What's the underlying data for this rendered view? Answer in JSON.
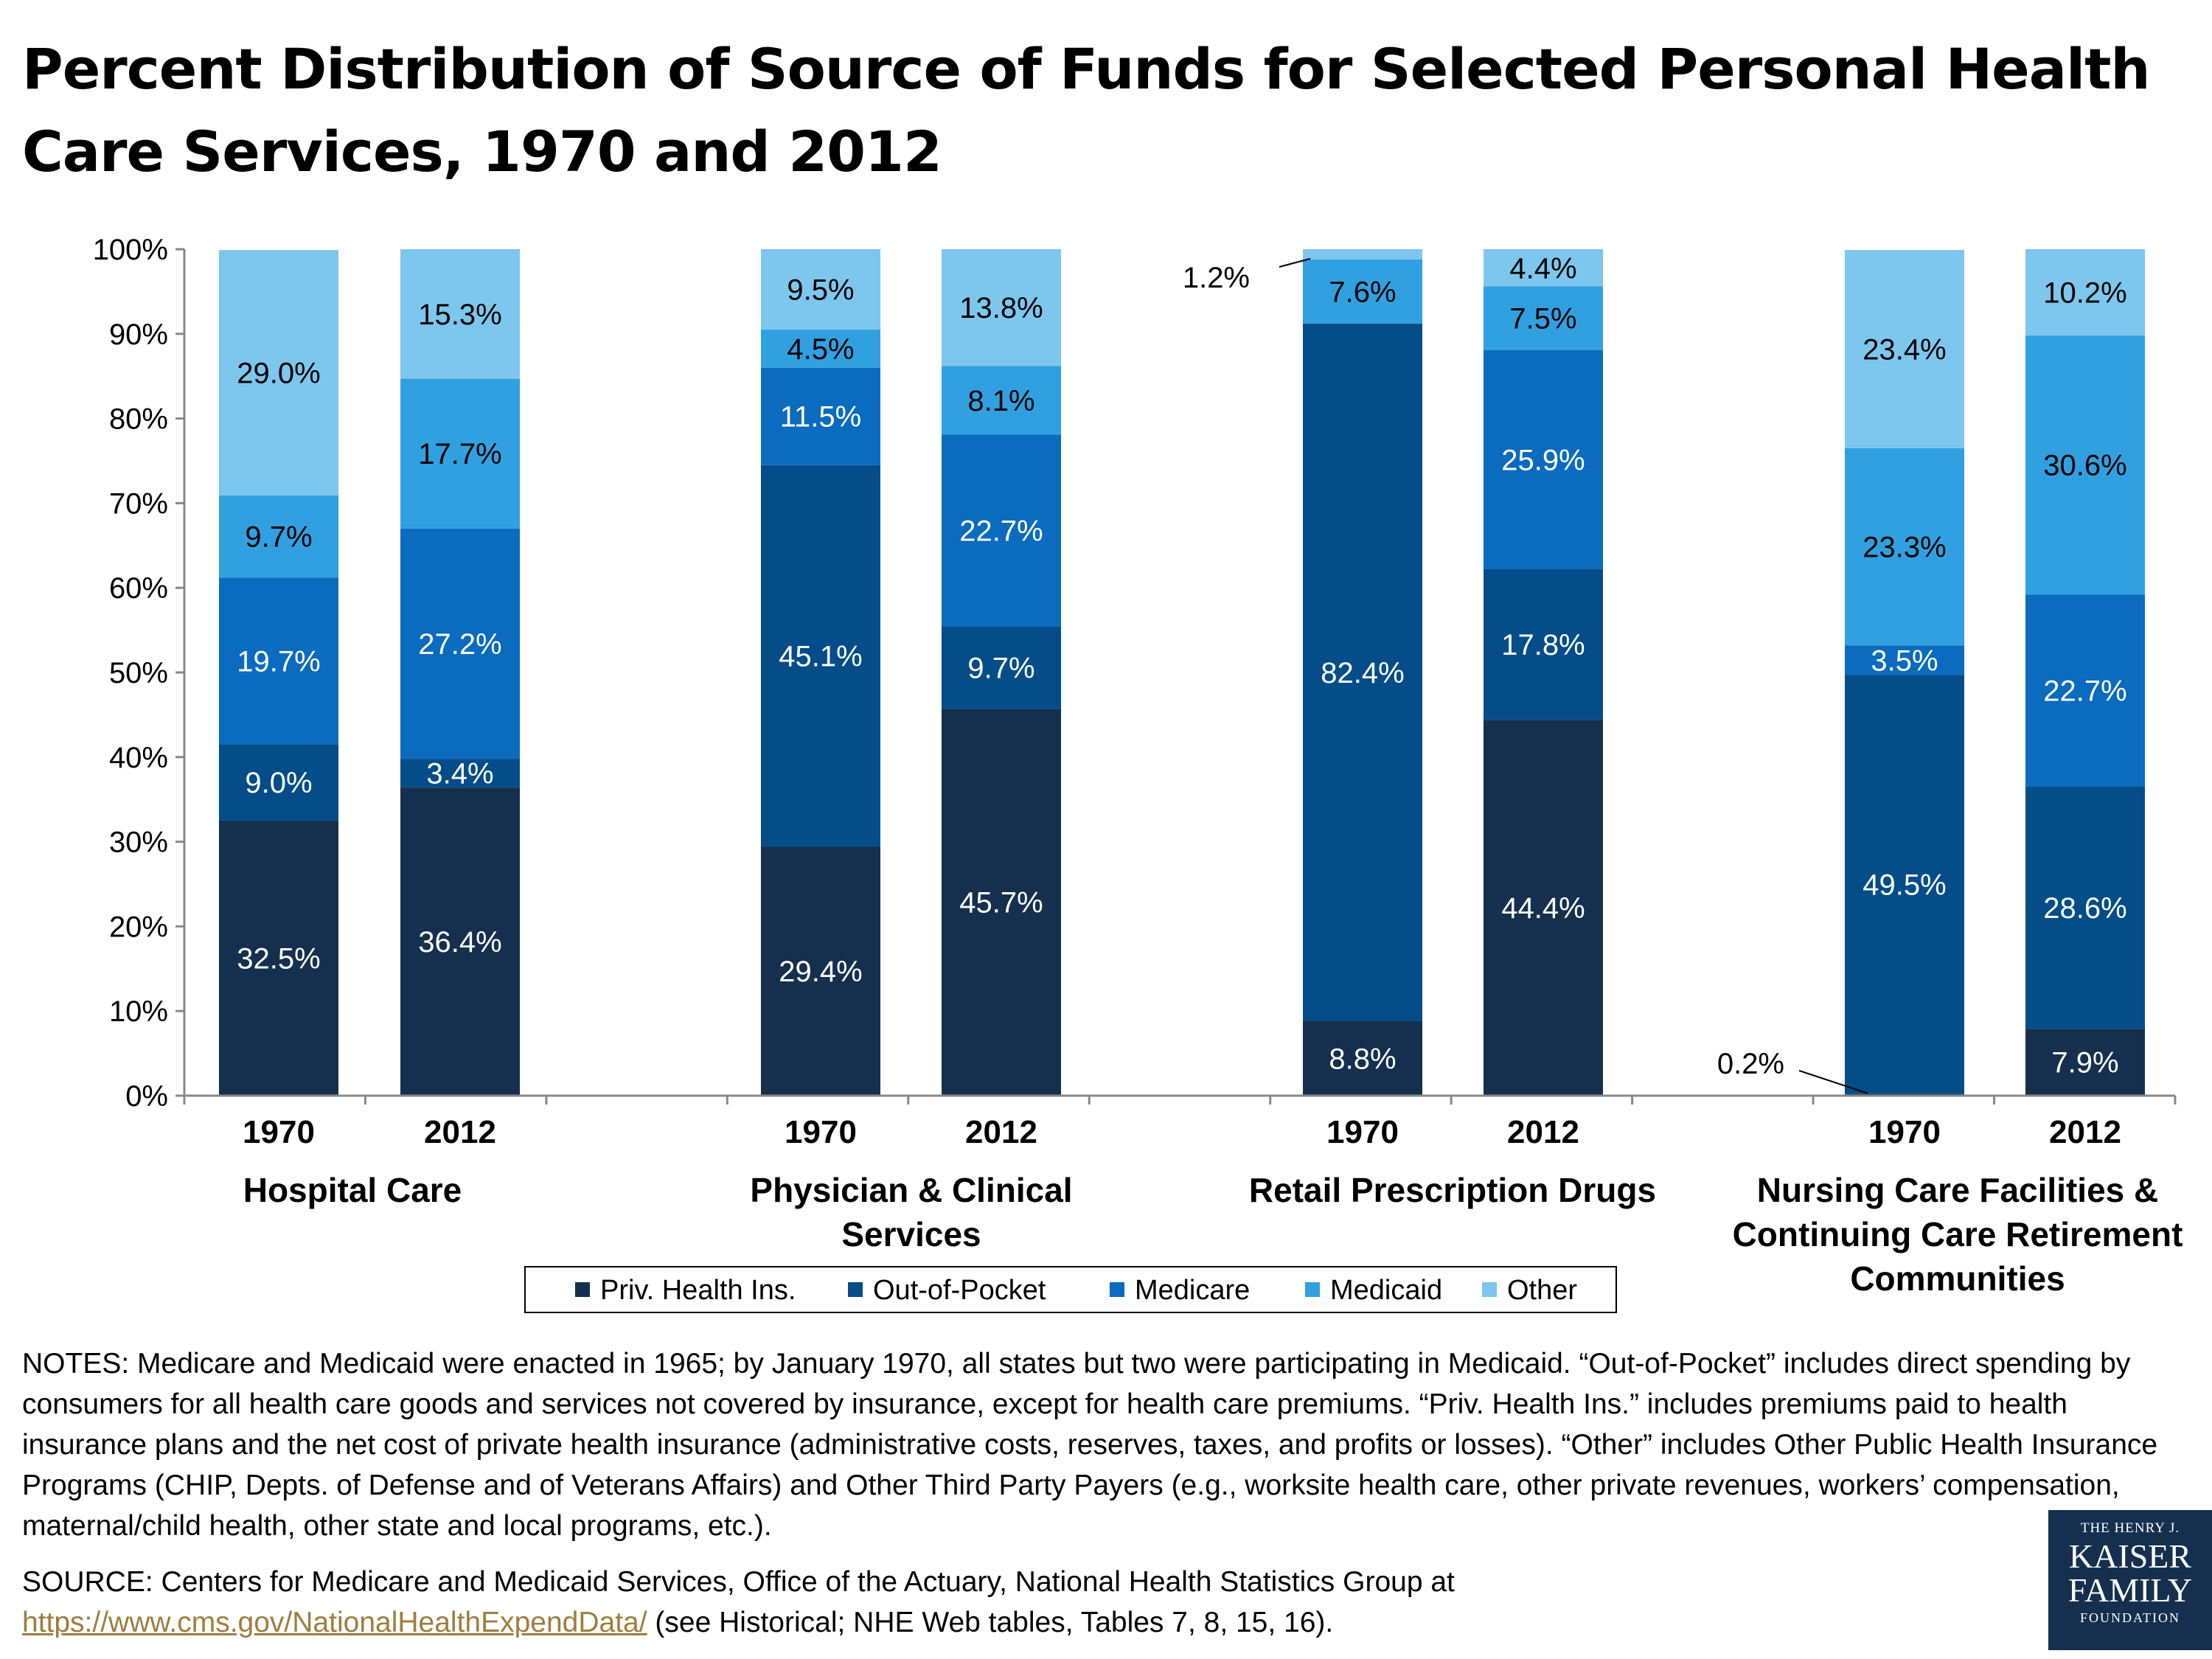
{
  "title": "Percent Distribution of Source of Funds for Selected Personal Health Care Services, 1970 and 2012",
  "chart_data": {
    "type": "bar",
    "stacked": true,
    "ylim": [
      0,
      100
    ],
    "yticks": [
      "0%",
      "10%",
      "20%",
      "30%",
      "40%",
      "50%",
      "60%",
      "70%",
      "80%",
      "90%",
      "100%"
    ],
    "groups": [
      {
        "name": "Hospital Care",
        "lines": [
          "Hospital Care"
        ],
        "bars": [
          {
            "year": "1970",
            "values": [
              32.5,
              9.0,
              19.7,
              9.7,
              29.0
            ],
            "labels": [
              "32.5%",
              "9.0%",
              "19.7%",
              "9.7%",
              "29.0%"
            ]
          },
          {
            "year": "2012",
            "values": [
              36.4,
              3.4,
              27.2,
              17.7,
              15.3
            ],
            "labels": [
              "36.4%",
              "3.4%",
              "27.2%",
              "17.7%",
              "15.3%"
            ]
          }
        ]
      },
      {
        "name": "Physician & Clinical Services",
        "lines": [
          "Physician & Clinical",
          "Services"
        ],
        "bars": [
          {
            "year": "1970",
            "values": [
              29.4,
              45.1,
              11.5,
              4.5,
              9.5
            ],
            "labels": [
              "29.4%",
              "45.1%",
              "11.5%",
              "4.5%",
              "9.5%"
            ]
          },
          {
            "year": "2012",
            "values": [
              45.7,
              9.7,
              22.7,
              8.1,
              13.8
            ],
            "labels": [
              "45.7%",
              "9.7%",
              "22.7%",
              "8.1%",
              "13.8%"
            ]
          }
        ]
      },
      {
        "name": "Retail Prescription Drugs",
        "lines": [
          "Retail Prescription Drugs"
        ],
        "bars": [
          {
            "year": "1970",
            "values": [
              8.8,
              82.4,
              0,
              7.6,
              1.2
            ],
            "labels": [
              "8.8%",
              "82.4%",
              "",
              "7.6%",
              "1.2%"
            ]
          },
          {
            "year": "2012",
            "values": [
              44.4,
              17.8,
              25.9,
              7.5,
              4.4
            ],
            "labels": [
              "44.4%",
              "17.8%",
              "25.9%",
              "7.5%",
              "4.4%"
            ]
          }
        ]
      },
      {
        "name": "Nursing Care Facilities & Continuing Care Retirement Communities",
        "lines": [
          "Nursing Care Facilities &",
          "Continuing Care Retirement",
          "Communities"
        ],
        "bars": [
          {
            "year": "1970",
            "values": [
              0.2,
              49.5,
              3.5,
              23.3,
              23.4
            ],
            "labels": [
              "0.2%",
              "49.5%",
              "3.5%",
              "23.3%",
              "23.4%"
            ]
          },
          {
            "year": "2012",
            "values": [
              7.9,
              28.6,
              22.7,
              30.6,
              10.2
            ],
            "labels": [
              "7.9%",
              "28.6%",
              "22.7%",
              "30.6%",
              "10.2%"
            ]
          }
        ]
      }
    ],
    "series": [
      {
        "name": "Priv. Health Ins.",
        "color": "#14304e"
      },
      {
        "name": "Out-of-Pocket",
        "color": "#054d88"
      },
      {
        "name": "Medicare",
        "color": "#0a6bbf"
      },
      {
        "name": "Medicaid",
        "color": "#31a0e0"
      },
      {
        "name": "Other",
        "color": "#7dc6ee"
      }
    ],
    "legend_position": "bottom"
  },
  "notes": "NOTES: Medicare and Medicaid were enacted in 1965; by January 1970, all states but two were participating in Medicaid. “Out-of-Pocket” includes direct spending by consumers for all health care goods and services not covered by insurance, except for health care premiums. “Priv. Health Ins.” includes premiums paid to health insurance plans and the net cost of private health insurance (administrative costs, reserves, taxes, and profits or losses). “Other” includes Other Public Health Insurance Programs (CHIP, Depts. of Defense and of Veterans Affairs) and Other Third Party Payers (e.g., worksite health care, other private revenues, workers’ compensation, maternal/child health, other state and local programs, etc.).",
  "source": {
    "prefix": "SOURCE: Centers for Medicare and Medicaid Services, Office of the Actuary, National Health Statistics Group at",
    "link": "https://www.cms.gov/NationalHealthExpendData/",
    "suffix": " (see Historical; NHE Web tables, Tables 7, 8, 15, 16)."
  },
  "logo": {
    "line1": "THE HENRY J.",
    "line2": "KAISER",
    "line3": "FAMILY",
    "line4": "FOUNDATION"
  }
}
